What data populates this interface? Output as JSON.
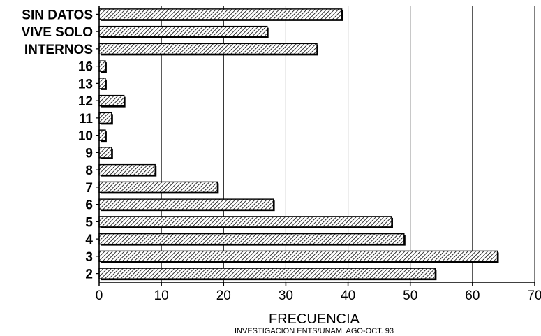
{
  "chart_data": {
    "type": "bar",
    "orientation": "horizontal",
    "categories": [
      "SIN DATOS",
      "VIVE SOLO",
      "INTERNOS",
      "16",
      "13",
      "12",
      "11",
      "10",
      "9",
      "8",
      "7",
      "6",
      "5",
      "4",
      "3",
      "2"
    ],
    "values": [
      39,
      27,
      35,
      1,
      1,
      4,
      2,
      1,
      2,
      9,
      19,
      28,
      47,
      49,
      64,
      54
    ],
    "xlabel": "FRECUENCIA",
    "ylabel": "",
    "xlim": [
      0,
      70
    ],
    "xticks": [
      0,
      10,
      20,
      30,
      40,
      50,
      60,
      70
    ],
    "grid": "vertical",
    "bar_fill": "hatched",
    "source_note": "INVESTIGACION ENTS/UNAM. AGO-OCT. 93"
  },
  "colors": {
    "bar_face": "#ffffff",
    "bar_hatch": "#000000",
    "bar_shadow": "#000000",
    "grid": "#000000"
  }
}
